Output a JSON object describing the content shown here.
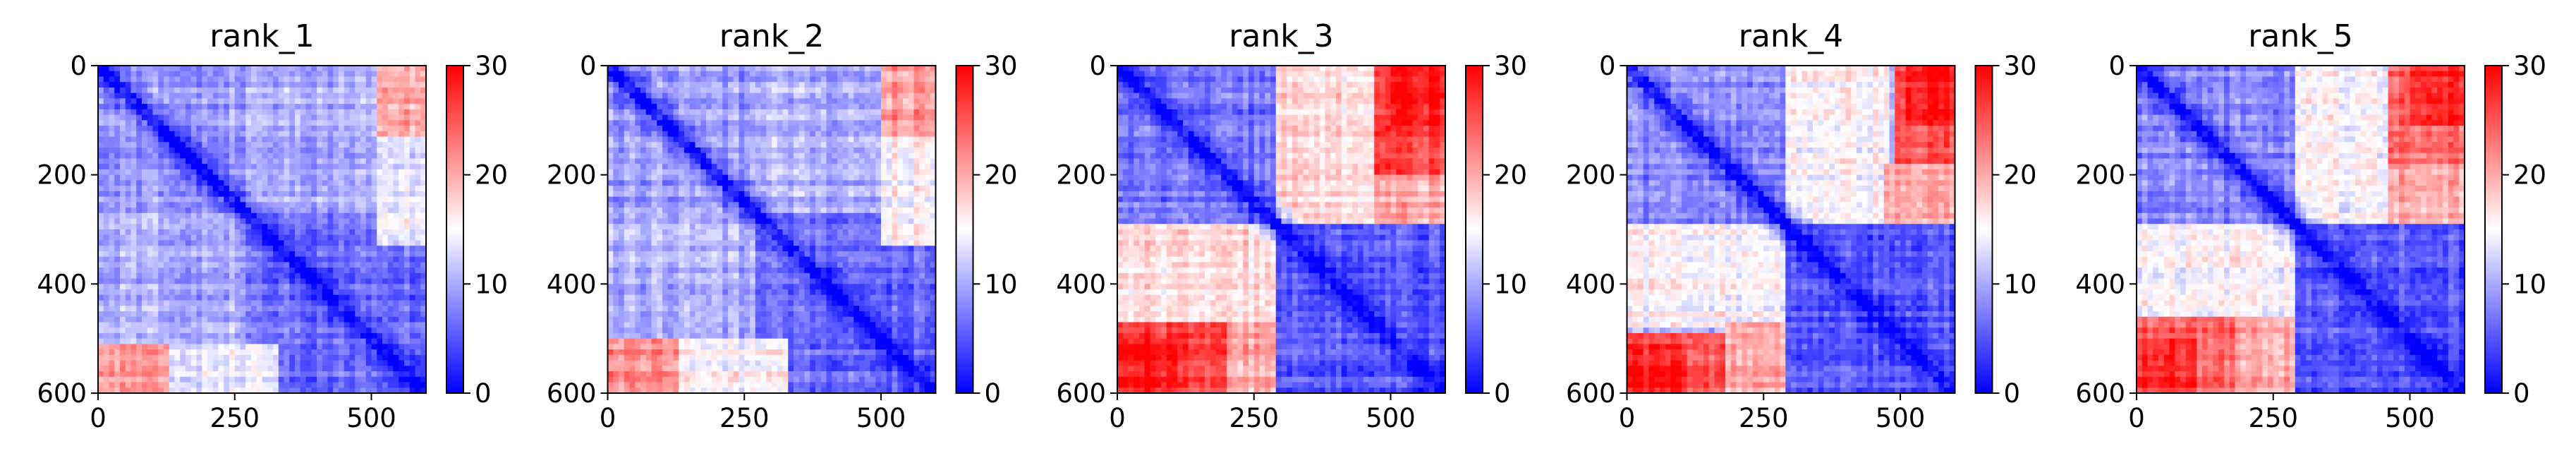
{
  "chart_data": [
    {
      "type": "heatmap",
      "title": "rank_1",
      "xlim": [
        0,
        600
      ],
      "ylim": [
        600,
        0
      ],
      "xticks": [
        0,
        250,
        500
      ],
      "yticks": [
        0,
        200,
        400,
        600
      ],
      "colorbar": {
        "min": 0,
        "max": 30,
        "ticks": [
          0,
          10,
          20,
          30
        ],
        "colors": [
          "#0000ff",
          "#ffffff",
          "#ff0000"
        ]
      },
      "domain_blocks": [
        {
          "rows": [
            0,
            600
          ],
          "cols": [
            0,
            600
          ],
          "value": 10
        },
        {
          "rows": [
            0,
            270
          ],
          "cols": [
            0,
            270
          ],
          "value": 9
        },
        {
          "rows": [
            270,
            600
          ],
          "cols": [
            270,
            600
          ],
          "value": 6
        },
        {
          "rows": [
            0,
            130
          ],
          "cols": [
            510,
            600
          ],
          "value": 24
        },
        {
          "rows": [
            510,
            600
          ],
          "cols": [
            0,
            130
          ],
          "value": 24
        },
        {
          "rows": [
            0,
            80
          ],
          "cols": [
            540,
            600
          ],
          "value": 28
        },
        {
          "rows": [
            540,
            600
          ],
          "cols": [
            0,
            80
          ],
          "value": 28
        },
        {
          "rows": [
            510,
            600
          ],
          "cols": [
            0,
            270
          ],
          "value": 21
        },
        {
          "rows": [
            0,
            270
          ],
          "cols": [
            510,
            600
          ],
          "value": 20
        },
        {
          "rows": [
            130,
            330
          ],
          "cols": [
            510,
            600
          ],
          "value": 14
        },
        {
          "rows": [
            510,
            600
          ],
          "cols": [
            130,
            330
          ],
          "value": 14
        }
      ]
    },
    {
      "type": "heatmap",
      "title": "rank_2",
      "xlim": [
        0,
        600
      ],
      "ylim": [
        600,
        0
      ],
      "xticks": [
        0,
        250,
        500
      ],
      "yticks": [
        0,
        200,
        400,
        600
      ],
      "colorbar": {
        "min": 0,
        "max": 30,
        "ticks": [
          0,
          10,
          20,
          30
        ],
        "colors": [
          "#0000ff",
          "#ffffff",
          "#ff0000"
        ]
      },
      "domain_blocks": [
        {
          "rows": [
            0,
            600
          ],
          "cols": [
            0,
            600
          ],
          "value": 10
        },
        {
          "rows": [
            0,
            270
          ],
          "cols": [
            0,
            270
          ],
          "value": 9
        },
        {
          "rows": [
            270,
            600
          ],
          "cols": [
            270,
            600
          ],
          "value": 6
        },
        {
          "rows": [
            0,
            130
          ],
          "cols": [
            500,
            600
          ],
          "value": 25
        },
        {
          "rows": [
            500,
            600
          ],
          "cols": [
            0,
            130
          ],
          "value": 25
        },
        {
          "rows": [
            0,
            80
          ],
          "cols": [
            530,
            600
          ],
          "value": 28
        },
        {
          "rows": [
            530,
            600
          ],
          "cols": [
            0,
            80
          ],
          "value": 28
        },
        {
          "rows": [
            500,
            600
          ],
          "cols": [
            0,
            270
          ],
          "value": 22
        },
        {
          "rows": [
            0,
            270
          ],
          "cols": [
            500,
            600
          ],
          "value": 21
        },
        {
          "rows": [
            130,
            330
          ],
          "cols": [
            500,
            600
          ],
          "value": 15
        },
        {
          "rows": [
            500,
            600
          ],
          "cols": [
            130,
            330
          ],
          "value": 15
        }
      ]
    },
    {
      "type": "heatmap",
      "title": "rank_3",
      "xlim": [
        0,
        600
      ],
      "ylim": [
        600,
        0
      ],
      "xticks": [
        0,
        250,
        500
      ],
      "yticks": [
        0,
        200,
        400,
        600
      ],
      "colorbar": {
        "min": 0,
        "max": 30,
        "ticks": [
          0,
          10,
          20,
          30
        ],
        "colors": [
          "#0000ff",
          "#ffffff",
          "#ff0000"
        ]
      },
      "domain_blocks": [
        {
          "rows": [
            0,
            600
          ],
          "cols": [
            0,
            600
          ],
          "value": 12
        },
        {
          "rows": [
            0,
            290
          ],
          "cols": [
            0,
            290
          ],
          "value": 7
        },
        {
          "rows": [
            290,
            600
          ],
          "cols": [
            290,
            600
          ],
          "value": 5
        },
        {
          "rows": [
            0,
            290
          ],
          "cols": [
            290,
            470
          ],
          "value": 17
        },
        {
          "rows": [
            290,
            470
          ],
          "cols": [
            0,
            290
          ],
          "value": 17
        },
        {
          "rows": [
            0,
            290
          ],
          "cols": [
            470,
            600
          ],
          "value": 26
        },
        {
          "rows": [
            470,
            600
          ],
          "cols": [
            0,
            290
          ],
          "value": 26
        },
        {
          "rows": [
            0,
            110
          ],
          "cols": [
            500,
            600
          ],
          "value": 29
        },
        {
          "rows": [
            500,
            600
          ],
          "cols": [
            0,
            110
          ],
          "value": 29
        },
        {
          "rows": [
            200,
            290
          ],
          "cols": [
            470,
            600
          ],
          "value": 20
        },
        {
          "rows": [
            470,
            600
          ],
          "cols": [
            200,
            290
          ],
          "value": 20
        }
      ]
    },
    {
      "type": "heatmap",
      "title": "rank_4",
      "xlim": [
        0,
        600
      ],
      "ylim": [
        600,
        0
      ],
      "xticks": [
        0,
        250,
        500
      ],
      "yticks": [
        0,
        200,
        400,
        600
      ],
      "colorbar": {
        "min": 0,
        "max": 30,
        "ticks": [
          0,
          10,
          20,
          30
        ],
        "colors": [
          "#0000ff",
          "#ffffff",
          "#ff0000"
        ]
      },
      "domain_blocks": [
        {
          "rows": [
            0,
            600
          ],
          "cols": [
            0,
            600
          ],
          "value": 11
        },
        {
          "rows": [
            0,
            290
          ],
          "cols": [
            0,
            290
          ],
          "value": 8
        },
        {
          "rows": [
            290,
            600
          ],
          "cols": [
            290,
            600
          ],
          "value": 5
        },
        {
          "rows": [
            0,
            290
          ],
          "cols": [
            290,
            480
          ],
          "value": 15
        },
        {
          "rows": [
            290,
            480
          ],
          "cols": [
            0,
            290
          ],
          "value": 15
        },
        {
          "rows": [
            0,
            280
          ],
          "cols": [
            490,
            600
          ],
          "value": 25
        },
        {
          "rows": [
            490,
            600
          ],
          "cols": [
            0,
            280
          ],
          "value": 25
        },
        {
          "rows": [
            0,
            110
          ],
          "cols": [
            510,
            600
          ],
          "value": 28
        },
        {
          "rows": [
            510,
            600
          ],
          "cols": [
            0,
            110
          ],
          "value": 28
        },
        {
          "rows": [
            470,
            600
          ],
          "cols": [
            180,
            290
          ],
          "value": 20
        },
        {
          "rows": [
            180,
            290
          ],
          "cols": [
            470,
            600
          ],
          "value": 20
        }
      ]
    },
    {
      "type": "heatmap",
      "title": "rank_5",
      "xlim": [
        0,
        600
      ],
      "ylim": [
        600,
        0
      ],
      "xticks": [
        0,
        250,
        500
      ],
      "yticks": [
        0,
        200,
        400,
        600
      ],
      "colorbar": {
        "min": 0,
        "max": 30,
        "ticks": [
          0,
          10,
          20,
          30
        ],
        "colors": [
          "#0000ff",
          "#ffffff",
          "#ff0000"
        ]
      },
      "domain_blocks": [
        {
          "rows": [
            0,
            600
          ],
          "cols": [
            0,
            600
          ],
          "value": 11
        },
        {
          "rows": [
            0,
            290
          ],
          "cols": [
            0,
            290
          ],
          "value": 8
        },
        {
          "rows": [
            290,
            600
          ],
          "cols": [
            290,
            600
          ],
          "value": 5
        },
        {
          "rows": [
            0,
            290
          ],
          "cols": [
            290,
            470
          ],
          "value": 15
        },
        {
          "rows": [
            290,
            470
          ],
          "cols": [
            0,
            290
          ],
          "value": 15
        },
        {
          "rows": [
            0,
            280
          ],
          "cols": [
            460,
            600
          ],
          "value": 24
        },
        {
          "rows": [
            460,
            600
          ],
          "cols": [
            0,
            280
          ],
          "value": 24
        },
        {
          "rows": [
            0,
            110
          ],
          "cols": [
            500,
            600
          ],
          "value": 28
        },
        {
          "rows": [
            500,
            600
          ],
          "cols": [
            0,
            110
          ],
          "value": 28
        },
        {
          "rows": [
            460,
            600
          ],
          "cols": [
            180,
            290
          ],
          "value": 20
        },
        {
          "rows": [
            180,
            290
          ],
          "cols": [
            460,
            600
          ],
          "value": 20
        }
      ]
    }
  ]
}
